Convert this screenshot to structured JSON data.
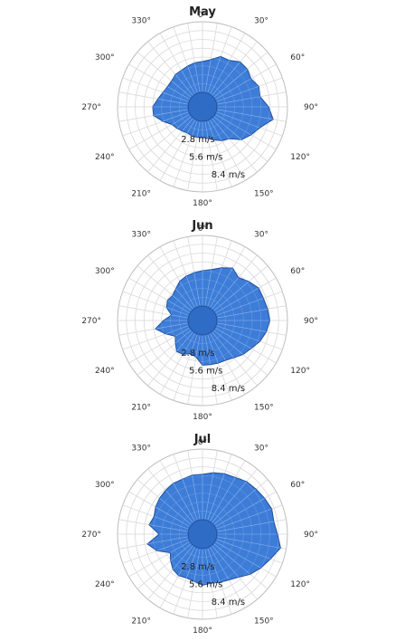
{
  "chart_data": [
    {
      "type": "polar-area",
      "title": "May",
      "angle_unit": "degrees",
      "angle_tick_labels": [
        "0°",
        "30°",
        "60°",
        "90°",
        "120°",
        "150°",
        "180°",
        "210°",
        "240°",
        "270°",
        "300°",
        "330°"
      ],
      "radial_tick_labels": [
        "2.8 m/s",
        "5.6 m/s",
        "8.4 m/s"
      ],
      "radial_ticks": [
        2.8,
        5.6,
        8.4
      ],
      "rmax": 11.2,
      "directions_deg": [
        0,
        10,
        20,
        30,
        40,
        50,
        60,
        70,
        80,
        90,
        100,
        110,
        120,
        130,
        140,
        150,
        160,
        170,
        180,
        190,
        200,
        210,
        220,
        230,
        240,
        250,
        260,
        270,
        280,
        290,
        300,
        310,
        320,
        330,
        340,
        350
      ],
      "values": [
        4.9,
        5.3,
        6.2,
        6.2,
        7.0,
        7.0,
        6.6,
        7.2,
        7.0,
        8.2,
        9.1,
        7.4,
        6.6,
        5.8,
        4.3,
        3.9,
        3.3,
        2.8,
        2.5,
        2.6,
        2.6,
        2.5,
        2.7,
        3.0,
        3.3,
        4.4,
        5.6,
        5.6,
        4.9,
        4.4,
        4.1,
        4.1,
        4.4,
        4.4,
        4.6,
        4.8
      ],
      "fill_color": "#3d7dd8",
      "grid": true
    },
    {
      "type": "polar-area",
      "title": "Jun",
      "angle_unit": "degrees",
      "angle_tick_labels": [
        "0°",
        "30°",
        "60°",
        "90°",
        "120°",
        "150°",
        "180°",
        "210°",
        "240°",
        "270°",
        "300°",
        "330°"
      ],
      "radial_tick_labels": [
        "2.8 m/s",
        "5.6 m/s",
        "8.4 m/s"
      ],
      "radial_ticks": [
        2.8,
        5.6,
        8.4
      ],
      "rmax": 11.2,
      "directions_deg": [
        0,
        10,
        20,
        30,
        40,
        50,
        60,
        70,
        80,
        90,
        100,
        110,
        120,
        130,
        140,
        150,
        160,
        170,
        180,
        190,
        200,
        210,
        220,
        230,
        240,
        250,
        260,
        270,
        280,
        290,
        300,
        310,
        320,
        330,
        340,
        350
      ],
      "values": [
        5.6,
        5.9,
        6.6,
        7.3,
        6.6,
        7.3,
        8.0,
        8.0,
        8.2,
        8.4,
        8.0,
        7.4,
        6.6,
        6.1,
        5.4,
        5.0,
        4.9,
        4.8,
        4.8,
        3.6,
        3.3,
        3.9,
        4.1,
        3.3,
        2.7,
        3.9,
        5.3,
        3.9,
        2.7,
        3.8,
        4.1,
        3.9,
        4.3,
        4.9,
        5.2,
        5.4
      ],
      "fill_color": "#3d7dd8",
      "grid": true
    },
    {
      "type": "polar-area",
      "title": "Jul",
      "angle_unit": "degrees",
      "angle_tick_labels": [
        "0°",
        "30°",
        "60°",
        "90°",
        "120°",
        "150°",
        "180°",
        "210°",
        "240°",
        "270°",
        "300°",
        "330°"
      ],
      "radial_tick_labels": [
        "2.8 m/s",
        "5.6 m/s",
        "8.4 m/s"
      ],
      "radial_ticks": [
        2.8,
        5.6,
        8.4
      ],
      "rmax": 11.2,
      "directions_deg": [
        0,
        10,
        20,
        30,
        40,
        50,
        60,
        70,
        80,
        90,
        100,
        110,
        120,
        130,
        140,
        150,
        160,
        170,
        180,
        190,
        200,
        210,
        220,
        230,
        240,
        250,
        260,
        270,
        280,
        290,
        300,
        310,
        320,
        330,
        340,
        350
      ],
      "values": [
        7.2,
        7.6,
        7.9,
        8.1,
        8.6,
        8.8,
        9.1,
        9.4,
        9.2,
        9.6,
        10.3,
        9.2,
        8.4,
        7.6,
        6.6,
        6.1,
        5.8,
        5.6,
        5.8,
        5.3,
        5.1,
        5.3,
        5.0,
        4.3,
        3.6,
        5.4,
        6.6,
        4.6,
        6.3,
        5.9,
        6.3,
        6.6,
        6.8,
        7.0,
        7.0,
        7.2
      ],
      "fill_color": "#3d7dd8",
      "grid": true
    }
  ]
}
